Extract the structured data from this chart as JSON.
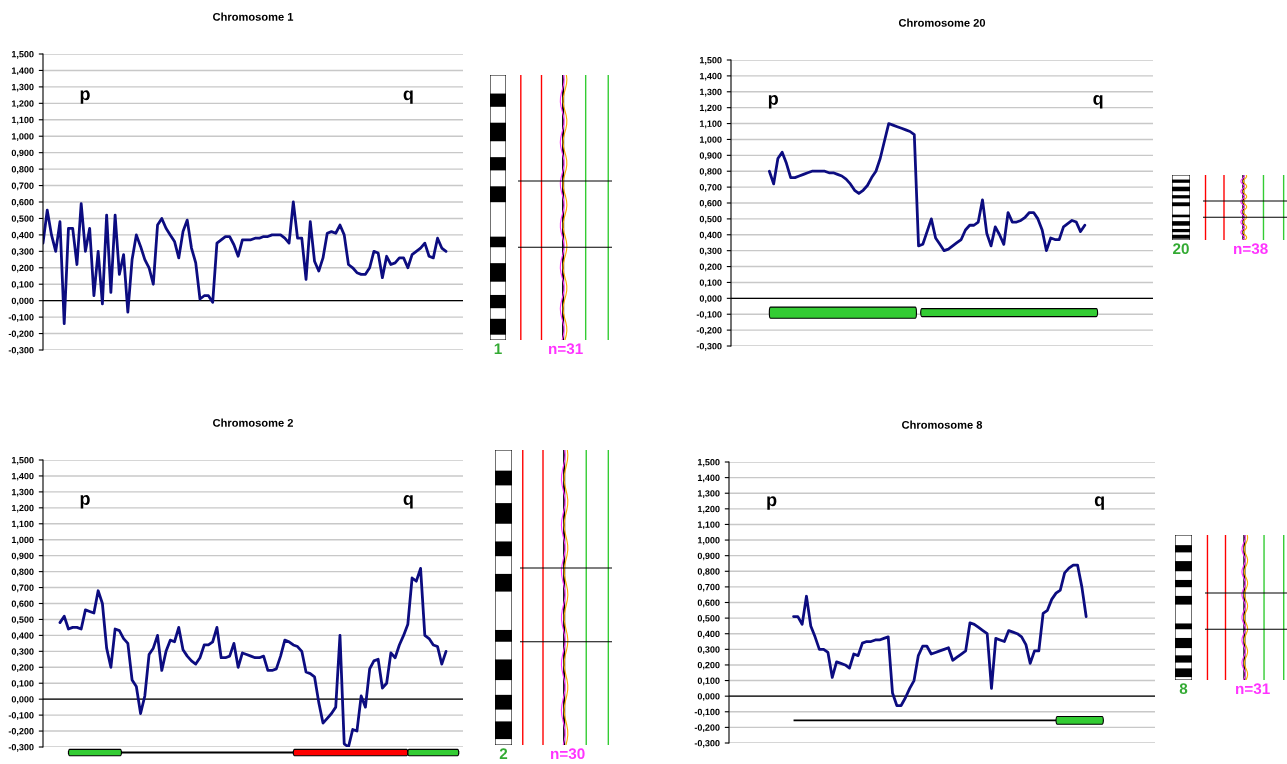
{
  "chart_data": [
    {
      "type": "line",
      "title": "Chromosome 1",
      "categories": [
        null,
        null,
        null,
        null,
        null,
        null,
        null,
        null,
        null,
        null,
        null,
        null,
        null,
        null,
        null,
        null,
        null,
        null,
        null,
        null,
        null,
        null,
        null,
        null,
        null,
        null,
        null,
        null,
        null,
        null,
        null,
        null,
        null,
        null,
        null,
        null,
        null,
        null,
        null,
        null,
        null,
        null,
        null,
        null,
        null,
        null,
        null,
        null,
        null,
        null,
        null,
        null,
        null,
        null,
        null,
        null,
        null,
        null,
        null,
        null,
        null,
        null,
        null,
        null,
        null,
        null,
        null,
        null,
        null,
        null,
        null,
        null,
        null,
        null,
        null,
        null,
        null,
        null,
        null,
        null,
        null,
        null,
        null,
        null,
        null,
        null,
        null,
        null,
        null,
        null,
        null,
        null,
        null,
        null,
        null,
        null,
        null,
        null,
        null,
        null
      ],
      "series": [
        {
          "color": "#0c0c80",
          "values": [
            0.35,
            0.55,
            0.4,
            0.3,
            0.48,
            -0.14,
            0.44,
            0.44,
            0.22,
            0.59,
            0.3,
            0.44,
            0.03,
            0.3,
            -0.02,
            0.52,
            0.05,
            0.52,
            0.16,
            0.28,
            -0.07,
            0.25,
            0.4,
            0.33,
            0.25,
            0.2,
            0.1,
            0.46,
            0.5,
            0.44,
            0.4,
            0.36,
            0.26,
            0.42,
            0.49,
            0.32,
            0.23,
            0.01,
            0.03,
            0.03,
            -0.01,
            0.35,
            0.37,
            0.39,
            0.39,
            0.34,
            0.27,
            0.37,
            0.37,
            0.37,
            0.38,
            0.38,
            0.39,
            0.39,
            0.4,
            0.4,
            0.4,
            0.38,
            0.35,
            0.6,
            0.38,
            0.38,
            0.13,
            0.48,
            0.24,
            0.18,
            0.26,
            0.41,
            0.42,
            0.41,
            0.46,
            0.4,
            0.22,
            0.2,
            0.17,
            0.16,
            0.16,
            0.2,
            0.3,
            0.29,
            0.14,
            0.27,
            0.22,
            0.23,
            0.26,
            0.26,
            0.2,
            0.28,
            0.3,
            0.32,
            0.35,
            0.27,
            0.26,
            0.38,
            0.32,
            0.3,
            null,
            null,
            null,
            null
          ]
        }
      ],
      "ylim": [
        -0.3,
        1.5
      ],
      "yticks": [
        {
          "value": -0.3,
          "label": "-0,300"
        },
        {
          "value": -0.2,
          "label": "-0,200"
        },
        {
          "value": -0.1,
          "label": "-0,100"
        },
        {
          "value": 0,
          "label": "0,000"
        },
        {
          "value": 0.1,
          "label": "0,100"
        },
        {
          "value": 0.2,
          "label": "0,200"
        },
        {
          "value": 0.3,
          "label": "0,300"
        },
        {
          "value": 0.4,
          "label": "0,400"
        },
        {
          "value": 0.5,
          "label": "0,500"
        },
        {
          "value": 0.6,
          "label": "0,600"
        },
        {
          "value": 0.7,
          "label": "0,700"
        },
        {
          "value": 0.8,
          "label": "0,800"
        },
        {
          "value": 0.9,
          "label": "0,900"
        },
        {
          "value": 1.0,
          "label": "1,000"
        },
        {
          "value": 1.1,
          "label": "1,100"
        },
        {
          "value": 1.2,
          "label": "1,200"
        },
        {
          "value": 1.3,
          "label": "1,300"
        },
        {
          "value": 1.4,
          "label": "1,400"
        },
        {
          "value": 1.5,
          "label": "1,500"
        }
      ],
      "grid": "y",
      "tick_labels": "y",
      "ref_lines": [
        {
          "axis": "y",
          "value": 0,
          "color": "#000000"
        }
      ],
      "annotations": [
        "p",
        "q",
        "1",
        "n=31"
      ]
    },
    {
      "type": "line",
      "title": "Chromosome 20",
      "categories": [
        null,
        null,
        null,
        null,
        null,
        null,
        null,
        null,
        null,
        null,
        null,
        null,
        null,
        null,
        null,
        null,
        null,
        null,
        null,
        null,
        null,
        null,
        null,
        null,
        null,
        null,
        null,
        null,
        null,
        null,
        null,
        null,
        null,
        null,
        null,
        null,
        null,
        null,
        null,
        null,
        null,
        null,
        null,
        null,
        null,
        null,
        null,
        null,
        null,
        null,
        null,
        null,
        null,
        null,
        null,
        null,
        null,
        null,
        null,
        null,
        null,
        null,
        null,
        null,
        null,
        null,
        null,
        null,
        null,
        null,
        null,
        null,
        null,
        null,
        null,
        null,
        null,
        null,
        null,
        null,
        null,
        null,
        null,
        null,
        null,
        null,
        null,
        null,
        null,
        null,
        null,
        null,
        null,
        null,
        null,
        null,
        null,
        null,
        null,
        null
      ],
      "series": [
        {
          "color": "#0c0c80",
          "values": [
            null,
            null,
            null,
            null,
            null,
            null,
            null,
            null,
            null,
            0.8,
            0.72,
            0.88,
            0.92,
            0.85,
            0.76,
            0.76,
            0.77,
            0.78,
            0.79,
            0.8,
            0.8,
            0.8,
            0.8,
            0.79,
            0.79,
            0.78,
            0.77,
            0.75,
            0.72,
            0.68,
            0.66,
            0.68,
            0.71,
            0.76,
            0.8,
            0.88,
            0.99,
            1.1,
            1.09,
            1.08,
            1.07,
            1.06,
            1.05,
            1.03,
            0.33,
            0.34,
            0.42,
            0.5,
            0.38,
            0.34,
            0.3,
            0.31,
            0.33,
            0.35,
            0.37,
            0.43,
            0.46,
            0.46,
            0.48,
            0.62,
            0.41,
            0.33,
            0.45,
            0.4,
            0.34,
            0.54,
            0.48,
            0.48,
            0.49,
            0.51,
            0.54,
            0.54,
            0.5,
            0.43,
            0.3,
            0.38,
            0.37,
            0.37,
            0.45,
            0.47,
            0.49,
            0.48,
            0.42,
            0.46,
            null,
            null,
            null,
            null,
            null,
            null,
            null,
            null,
            null,
            null,
            null,
            null,
            null,
            null,
            null,
            null
          ]
        }
      ],
      "ylim": [
        -0.3,
        1.5
      ],
      "yticks": [
        {
          "value": -0.3,
          "label": "-0,300"
        },
        {
          "value": -0.2,
          "label": "-0,200"
        },
        {
          "value": -0.1,
          "label": "-0,100"
        },
        {
          "value": 0,
          "label": "0,000"
        },
        {
          "value": 0.1,
          "label": "0,100"
        },
        {
          "value": 0.2,
          "label": "0,200"
        },
        {
          "value": 0.3,
          "label": "0,300"
        },
        {
          "value": 0.4,
          "label": "0,400"
        },
        {
          "value": 0.5,
          "label": "0,500"
        },
        {
          "value": 0.6,
          "label": "0,600"
        },
        {
          "value": 0.7,
          "label": "0,700"
        },
        {
          "value": 0.8,
          "label": "0,800"
        },
        {
          "value": 0.9,
          "label": "0,900"
        },
        {
          "value": 1.0,
          "label": "1,000"
        },
        {
          "value": 1.1,
          "label": "1,100"
        },
        {
          "value": 1.2,
          "label": "1,200"
        },
        {
          "value": 1.3,
          "label": "1,300"
        },
        {
          "value": 1.4,
          "label": "1,400"
        },
        {
          "value": 1.5,
          "label": "1,500"
        }
      ],
      "grid": "y",
      "tick_labels": "y",
      "ref_lines": [
        {
          "axis": "y",
          "value": 0,
          "color": "#000000"
        }
      ],
      "annotations": [
        "p",
        "q",
        "20",
        "n=38"
      ]
    },
    {
      "type": "line",
      "title": "Chromosome 2",
      "categories": [
        null,
        null,
        null,
        null,
        null,
        null,
        null,
        null,
        null,
        null,
        null,
        null,
        null,
        null,
        null,
        null,
        null,
        null,
        null,
        null,
        null,
        null,
        null,
        null,
        null,
        null,
        null,
        null,
        null,
        null,
        null,
        null,
        null,
        null,
        null,
        null,
        null,
        null,
        null,
        null,
        null,
        null,
        null,
        null,
        null,
        null,
        null,
        null,
        null,
        null,
        null,
        null,
        null,
        null,
        null,
        null,
        null,
        null,
        null,
        null,
        null,
        null,
        null,
        null,
        null,
        null,
        null,
        null,
        null,
        null,
        null,
        null,
        null,
        null,
        null,
        null,
        null,
        null,
        null,
        null,
        null,
        null,
        null,
        null,
        null,
        null,
        null,
        null,
        null,
        null,
        null,
        null,
        null,
        null,
        null,
        null,
        null,
        null,
        null,
        null
      ],
      "series": [
        {
          "color": "#0c0c80",
          "values": [
            null,
            null,
            null,
            null,
            0.48,
            0.52,
            0.44,
            0.45,
            0.45,
            0.44,
            0.56,
            0.55,
            0.54,
            0.68,
            0.6,
            0.32,
            0.2,
            0.44,
            0.43,
            0.38,
            0.35,
            0.12,
            0.08,
            -0.09,
            0.02,
            0.28,
            0.32,
            0.4,
            0.18,
            0.3,
            0.37,
            0.36,
            0.45,
            0.31,
            0.27,
            0.24,
            0.22,
            0.26,
            0.34,
            0.34,
            0.36,
            0.45,
            0.26,
            0.26,
            0.27,
            0.35,
            0.2,
            0.29,
            0.28,
            0.27,
            0.26,
            0.26,
            0.27,
            0.18,
            0.18,
            0.19,
            0.27,
            0.37,
            0.36,
            0.34,
            0.33,
            0.3,
            0.17,
            0.16,
            0.14,
            -0.02,
            -0.15,
            -0.12,
            -0.09,
            -0.05,
            0.4,
            -0.28,
            -0.3,
            -0.19,
            -0.2,
            0.02,
            -0.05,
            0.19,
            0.24,
            0.25,
            0.07,
            0.1,
            0.29,
            0.26,
            0.34,
            0.4,
            0.47,
            0.76,
            0.74,
            0.82,
            0.4,
            0.38,
            0.34,
            0.33,
            0.22,
            0.3,
            null,
            null,
            null,
            null
          ]
        }
      ],
      "ylim": [
        -0.3,
        1.5
      ],
      "yticks": [
        {
          "value": -0.3,
          "label": "-0,300"
        },
        {
          "value": -0.2,
          "label": "-0,200"
        },
        {
          "value": -0.1,
          "label": "-0,100"
        },
        {
          "value": 0,
          "label": "0,000"
        },
        {
          "value": 0.1,
          "label": "0,100"
        },
        {
          "value": 0.2,
          "label": "0,200"
        },
        {
          "value": 0.3,
          "label": "0,300"
        },
        {
          "value": 0.4,
          "label": "0,400"
        },
        {
          "value": 0.5,
          "label": "0,500"
        },
        {
          "value": 0.6,
          "label": "0,600"
        },
        {
          "value": 0.7,
          "label": "0,700"
        },
        {
          "value": 0.8,
          "label": "0,800"
        },
        {
          "value": 0.9,
          "label": "0,900"
        },
        {
          "value": 1.0,
          "label": "1,000"
        },
        {
          "value": 1.1,
          "label": "1,100"
        },
        {
          "value": 1.2,
          "label": "1,200"
        },
        {
          "value": 1.3,
          "label": "1,300"
        },
        {
          "value": 1.4,
          "label": "1,400"
        },
        {
          "value": 1.5,
          "label": "1,500"
        }
      ],
      "grid": "y",
      "tick_labels": "y",
      "ref_lines": [
        {
          "axis": "y",
          "value": 0,
          "color": "#000000"
        }
      ],
      "annotations": [
        "p",
        "q",
        "2",
        "n=30"
      ]
    },
    {
      "type": "line",
      "title": "Chromosome 8",
      "categories": [
        null,
        null,
        null,
        null,
        null,
        null,
        null,
        null,
        null,
        null,
        null,
        null,
        null,
        null,
        null,
        null,
        null,
        null,
        null,
        null,
        null,
        null,
        null,
        null,
        null,
        null,
        null,
        null,
        null,
        null,
        null,
        null,
        null,
        null,
        null,
        null,
        null,
        null,
        null,
        null,
        null,
        null,
        null,
        null,
        null,
        null,
        null,
        null,
        null,
        null,
        null,
        null,
        null,
        null,
        null,
        null,
        null,
        null,
        null,
        null,
        null,
        null,
        null,
        null,
        null,
        null,
        null,
        null,
        null,
        null,
        null,
        null,
        null,
        null,
        null,
        null,
        null,
        null,
        null,
        null,
        null,
        null,
        null,
        null,
        null,
        null,
        null,
        null,
        null,
        null,
        null,
        null,
        null,
        null,
        null,
        null,
        null,
        null,
        null,
        null
      ],
      "series": [
        {
          "color": "#0c0c80",
          "values": [
            null,
            null,
            null,
            null,
            null,
            null,
            null,
            null,
            null,
            null,
            null,
            null,
            null,
            null,
            null,
            0.51,
            0.51,
            0.46,
            0.64,
            0.45,
            0.38,
            0.3,
            0.3,
            0.28,
            0.12,
            0.22,
            0.21,
            0.2,
            0.18,
            0.27,
            0.26,
            0.34,
            0.35,
            0.35,
            0.36,
            0.36,
            0.37,
            0.38,
            0.02,
            -0.06,
            -0.06,
            -0.01,
            0.05,
            0.1,
            0.26,
            0.32,
            0.32,
            0.27,
            0.28,
            0.29,
            0.3,
            0.31,
            0.23,
            0.25,
            0.27,
            0.29,
            0.47,
            0.46,
            0.44,
            0.42,
            0.4,
            0.05,
            0.37,
            0.36,
            0.35,
            0.42,
            0.41,
            0.4,
            0.38,
            0.33,
            0.21,
            0.29,
            0.29,
            0.53,
            0.55,
            0.62,
            0.66,
            0.68,
            0.79,
            0.82,
            0.84,
            0.84,
            0.7,
            0.51,
            null,
            null,
            null,
            null,
            null,
            null,
            null,
            null,
            null,
            null,
            null,
            null,
            null,
            null,
            null,
            null
          ]
        }
      ],
      "ylim": [
        -0.3,
        1.5
      ],
      "yticks": [
        {
          "value": -0.3,
          "label": "-0,300"
        },
        {
          "value": -0.2,
          "label": "-0,200"
        },
        {
          "value": -0.1,
          "label": "-0,100"
        },
        {
          "value": 0,
          "label": "0,000"
        },
        {
          "value": 0.1,
          "label": "0,100"
        },
        {
          "value": 0.2,
          "label": "0,200"
        },
        {
          "value": 0.3,
          "label": "0,300"
        },
        {
          "value": 0.4,
          "label": "0,400"
        },
        {
          "value": 0.5,
          "label": "0,500"
        },
        {
          "value": 0.6,
          "label": "0,600"
        },
        {
          "value": 0.7,
          "label": "0,700"
        },
        {
          "value": 0.8,
          "label": "0,800"
        },
        {
          "value": 0.9,
          "label": "0,900"
        },
        {
          "value": 1.0,
          "label": "1,000"
        },
        {
          "value": 1.1,
          "label": "1,100"
        },
        {
          "value": 1.2,
          "label": "1,200"
        },
        {
          "value": 1.3,
          "label": "1,300"
        },
        {
          "value": 1.4,
          "label": "1,400"
        },
        {
          "value": 1.5,
          "label": "1,500"
        }
      ],
      "grid": "y",
      "tick_labels": "y",
      "ref_lines": [
        {
          "axis": "y",
          "value": 0,
          "color": "#000000"
        }
      ],
      "annotations": [
        "p",
        "q",
        "8",
        "n=31"
      ]
    }
  ]
}
